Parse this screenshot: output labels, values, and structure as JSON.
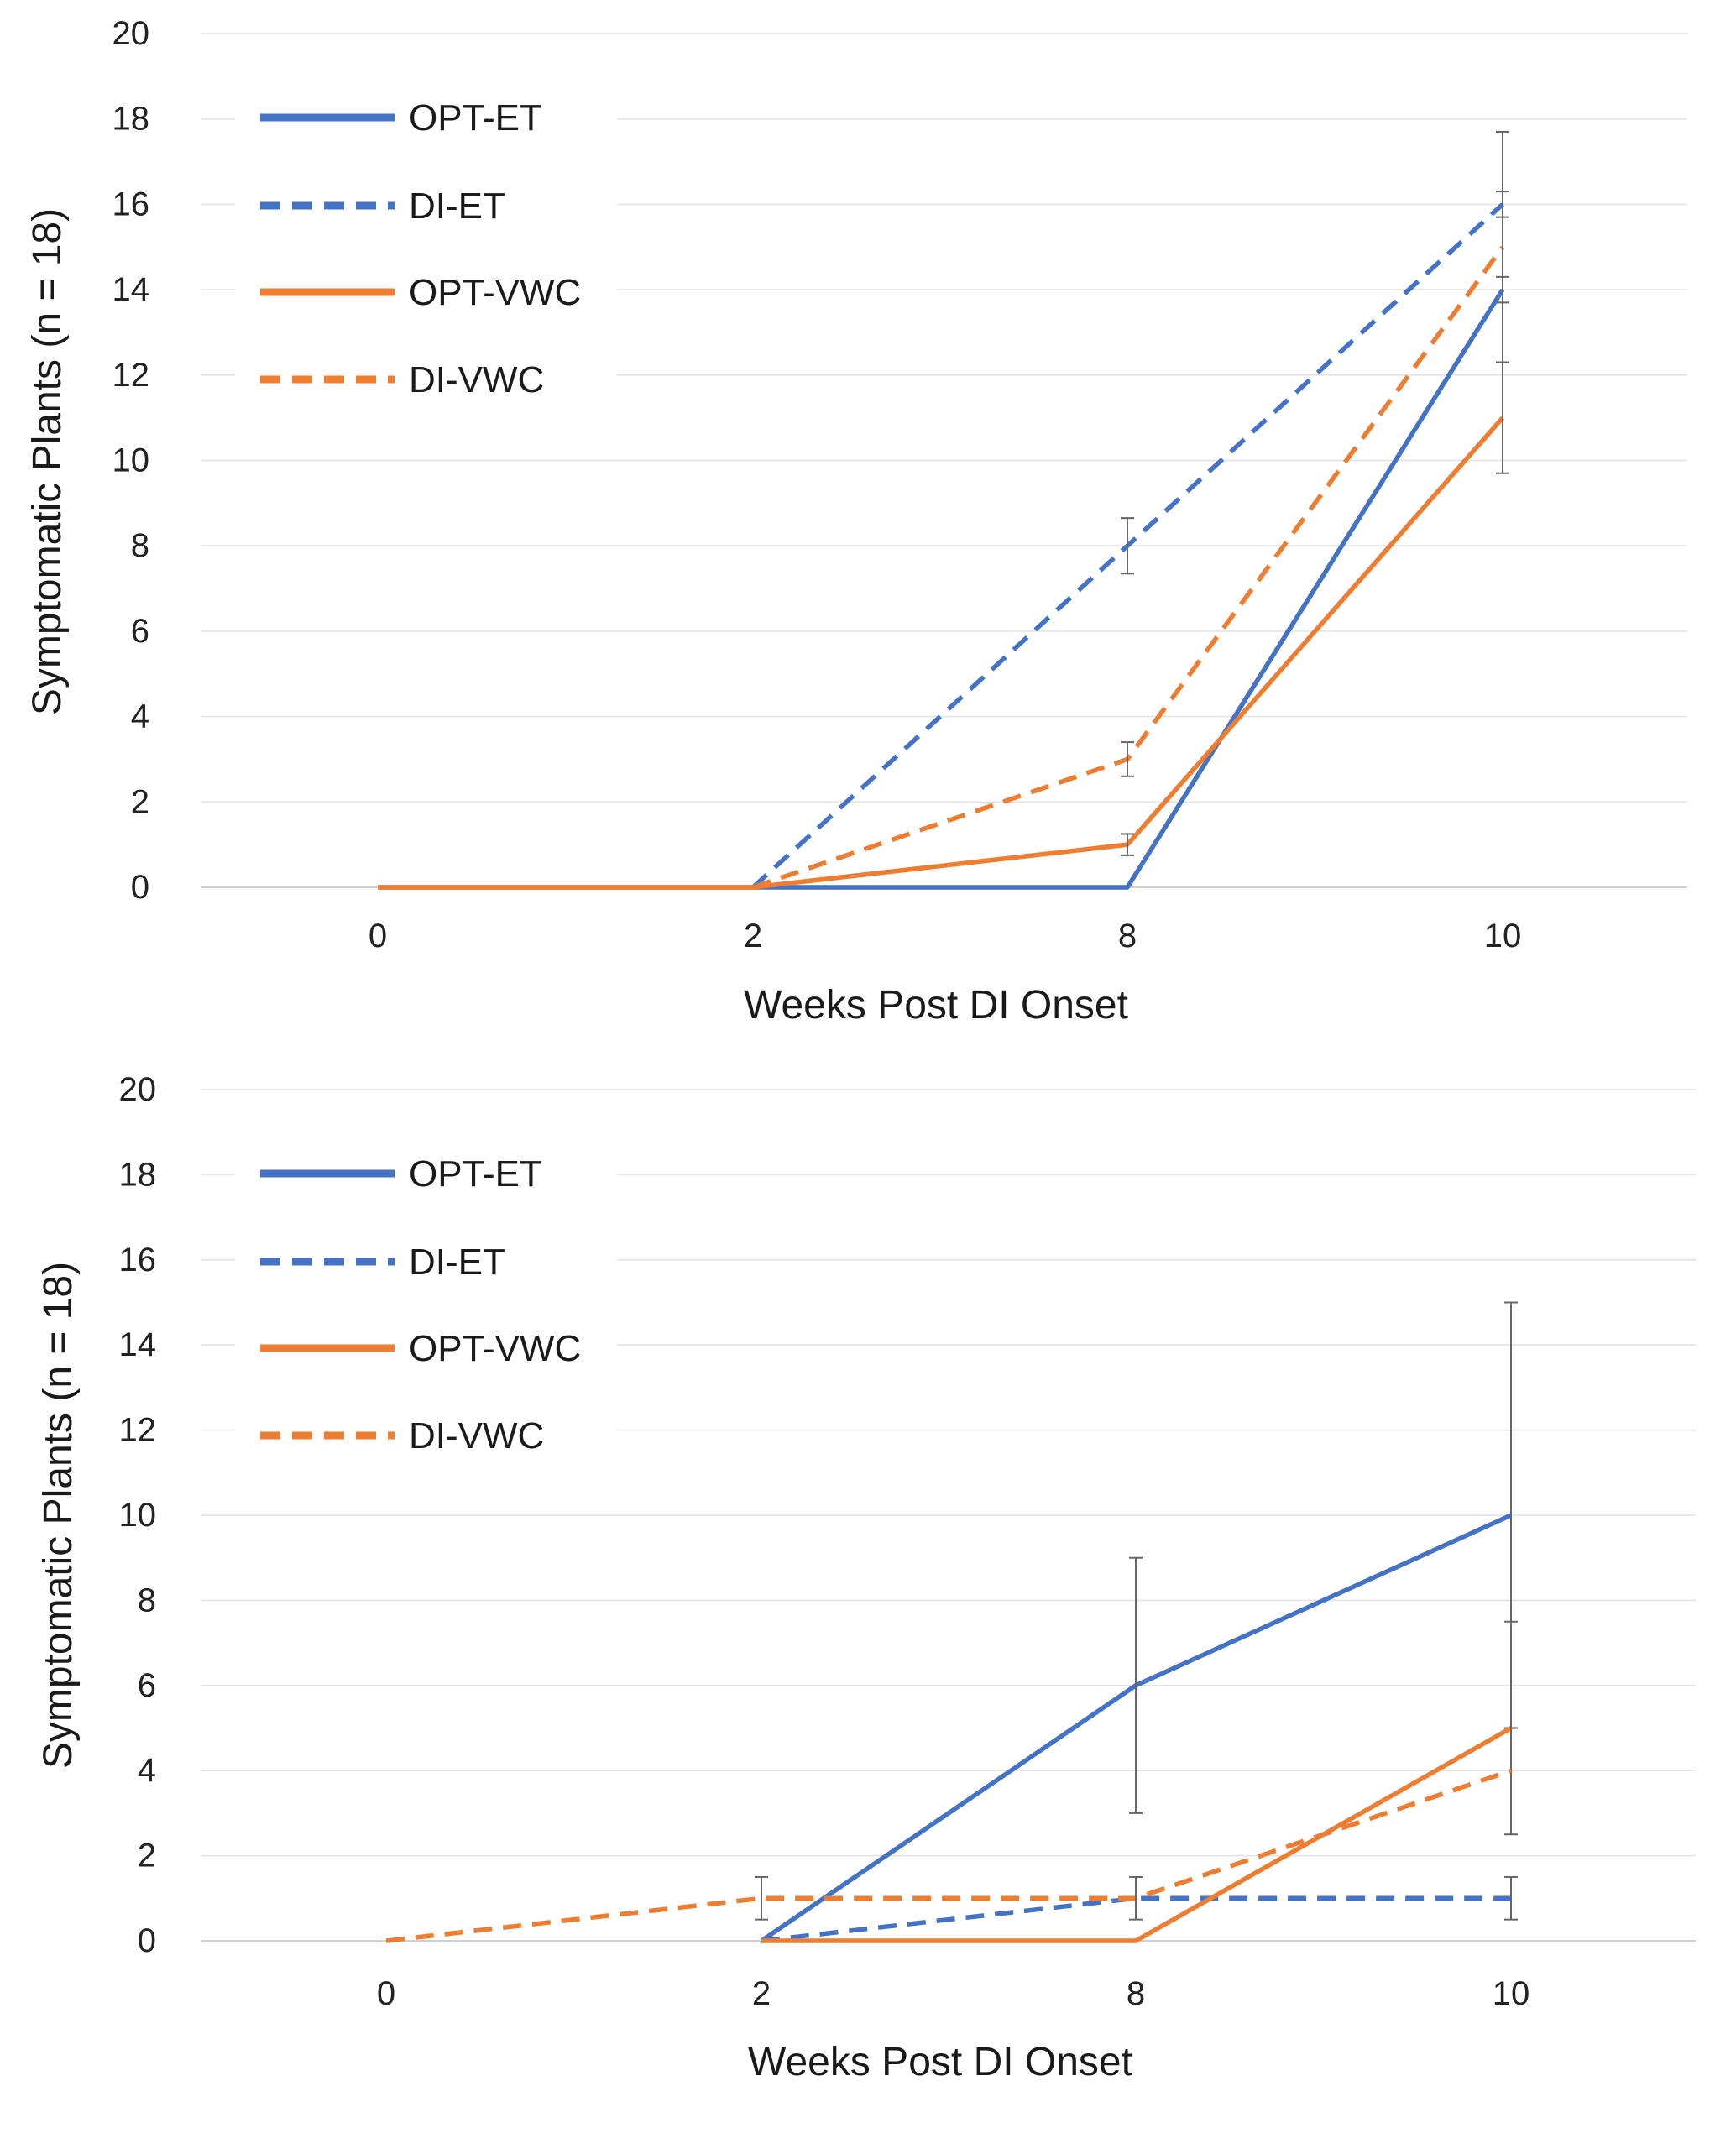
{
  "chart_data": [
    {
      "type": "line",
      "title": "",
      "xlabel": "Weeks Post DI Onset",
      "ylabel": "Symptomatic Plants (n = 18)",
      "categories": [
        "0",
        "2",
        "8",
        "10"
      ],
      "ylim": [
        0,
        20
      ],
      "ytick_step": 2,
      "yticks": [
        "0",
        "2",
        "4",
        "6",
        "8",
        "10",
        "12",
        "14",
        "16",
        "18",
        "20"
      ],
      "grid": "horizontal",
      "legend_position": "top-left",
      "series": [
        {
          "name": "OPT-ET",
          "color": "#4472C4",
          "dash": "solid",
          "values": [
            0,
            0,
            0,
            14
          ],
          "errors": [
            null,
            null,
            null,
            1.7
          ]
        },
        {
          "name": "DI-ET",
          "color": "#4472C4",
          "dash": "dashed",
          "values": [
            null,
            0,
            8,
            16
          ],
          "errors": [
            null,
            null,
            0.65,
            1.7
          ]
        },
        {
          "name": "OPT-VWC",
          "color": "#ED7D31",
          "dash": "solid",
          "values": [
            0,
            0,
            1,
            11
          ],
          "errors": [
            null,
            null,
            0.25,
            1.3
          ]
        },
        {
          "name": "DI-VWC",
          "color": "#ED7D31",
          "dash": "dashed",
          "values": [
            null,
            0,
            3,
            15
          ],
          "errors": [
            null,
            null,
            0.4,
            1.3
          ]
        }
      ]
    },
    {
      "type": "line",
      "title": "",
      "xlabel": "Weeks Post DI Onset",
      "ylabel": "Symptomatic Plants (n = 18)",
      "categories": [
        "0",
        "2",
        "8",
        "10"
      ],
      "ylim": [
        0,
        20
      ],
      "ytick_step": 2,
      "yticks": [
        "0",
        "2",
        "4",
        "6",
        "8",
        "10",
        "12",
        "14",
        "16",
        "18",
        "20"
      ],
      "grid": "horizontal",
      "legend_position": "top-left",
      "series": [
        {
          "name": "OPT-ET",
          "color": "#4472C4",
          "dash": "solid",
          "values": [
            null,
            0,
            6,
            10
          ],
          "errors": [
            null,
            null,
            3,
            5
          ]
        },
        {
          "name": "DI-ET",
          "color": "#4472C4",
          "dash": "dashed",
          "values": [
            null,
            0,
            1,
            1
          ],
          "errors": [
            null,
            null,
            null,
            0.5
          ]
        },
        {
          "name": "OPT-VWC",
          "color": "#ED7D31",
          "dash": "solid",
          "values": [
            null,
            0,
            0,
            5
          ],
          "errors": [
            null,
            null,
            null,
            2.5
          ]
        },
        {
          "name": "DI-VWC",
          "color": "#ED7D31",
          "dash": "dashed",
          "values": [
            0,
            1,
            1,
            4
          ],
          "errors": [
            null,
            0.5,
            0.5,
            null
          ]
        }
      ]
    }
  ]
}
